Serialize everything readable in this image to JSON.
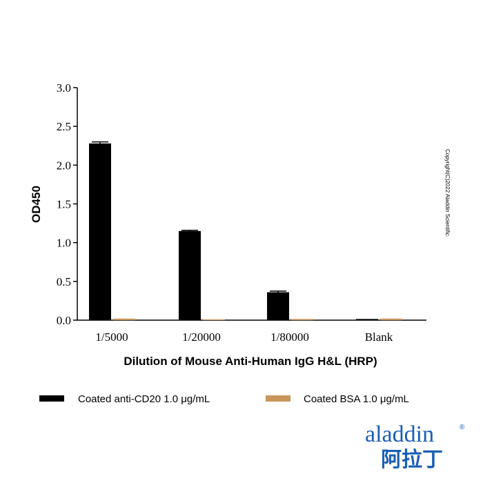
{
  "chart_data": {
    "type": "bar",
    "ylabel": "OD450",
    "xlabel": "Dilution of Mouse Anti-Human IgG H&L (HRP)",
    "categories": [
      "1/5000",
      "1/20000",
      "1/80000",
      "Blank"
    ],
    "yticks": [
      "0.0",
      "0.5",
      "1.0",
      "1.5",
      "2.0",
      "2.5",
      "3.0"
    ],
    "ylim": [
      0,
      3.0
    ],
    "legend_position": "bottom",
    "grid": false,
    "series": [
      {
        "name": "Coated anti-CD20 1.0 μg/mL",
        "color": "#000000",
        "values": [
          2.28,
          1.15,
          0.36,
          0.015
        ],
        "errors": [
          0.02,
          0.01,
          0.015,
          0.0
        ]
      },
      {
        "name": "Coated BSA 1.0 μg/mL",
        "color": "#c8955a",
        "values": [
          0.02,
          0.01,
          0.015,
          0.02
        ],
        "errors": [
          0.0,
          0.0,
          0.0,
          0.0
        ]
      }
    ]
  },
  "copyright": "Copyright(C)2022 Aladdin Scientific.",
  "logo": {
    "latin": "aladdin",
    "cjk": "阿拉丁",
    "registered": "®",
    "color": "#1a5fb4"
  }
}
